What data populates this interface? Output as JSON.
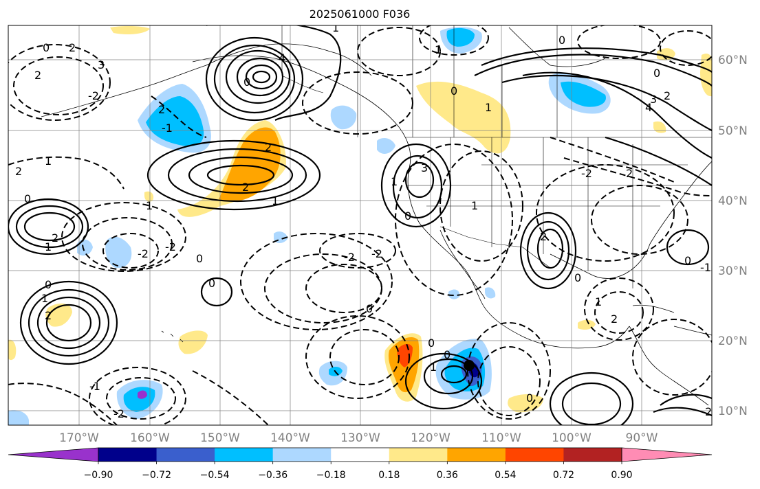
{
  "title": "2025061000 F036",
  "map": {
    "latitude_labels": [
      "60°N",
      "50°N",
      "40°N",
      "30°N",
      "20°N",
      "10°N"
    ],
    "longitude_labels": [
      "170°W",
      "160°W",
      "150°W",
      "140°W",
      "130°W",
      "120°W",
      "110°W",
      "100°W",
      "90°W"
    ],
    "marker": "storm-center",
    "contour_label_values": [
      "0",
      "1",
      "2",
      "3",
      "4",
      "-2",
      "-1"
    ]
  },
  "colorbar": {
    "tick_labels": [
      "−0.90",
      "−0.72",
      "−0.54",
      "−0.36",
      "−0.18",
      "0.18",
      "0.36",
      "0.54",
      "0.72",
      "0.90"
    ],
    "colors": [
      "#9932cc",
      "#00008b",
      "#3a5fcd",
      "#00bfff",
      "#add8ff",
      "#ffffff",
      "#ffe98a",
      "#ffa500",
      "#ff4500",
      "#b22222",
      "#ff8cb4"
    ]
  }
}
